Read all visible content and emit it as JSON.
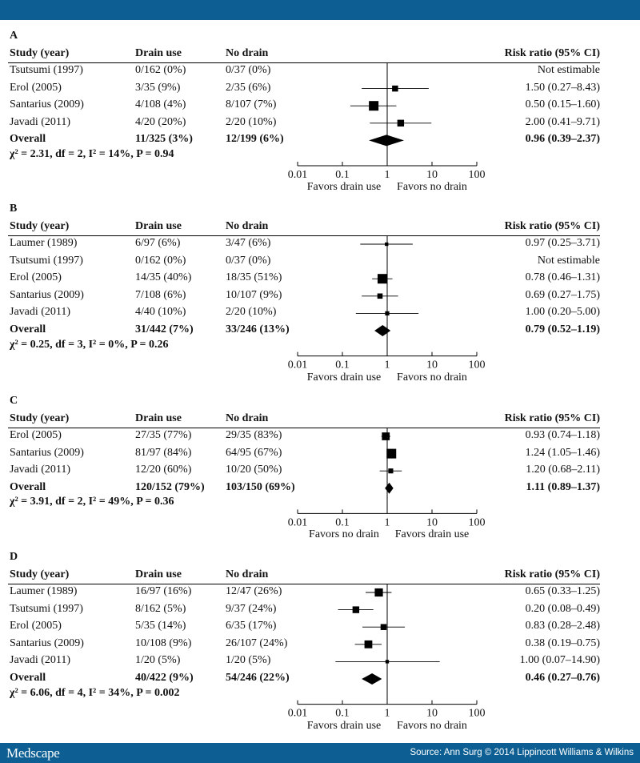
{
  "header_brand": "",
  "footer": {
    "brand": "Medscape",
    "source": "Source: Ann Surg © 2014 Lippincott Williams & Wilkins"
  },
  "columns": {
    "study": "Study (year)",
    "drain": "Drain use",
    "nodrain": "No drain",
    "rr": "Risk ratio (95% CI)"
  },
  "axis_ticks": [
    "0.01",
    "0.1",
    "1",
    "10",
    "100"
  ],
  "chart_data": [
    {
      "type": "forest",
      "panel": "A",
      "xscale": "log",
      "xlim": [
        0.01,
        100
      ],
      "favors_left": "Favors drain use",
      "favors_right": "Favors no drain",
      "heterogeneity": "χ² = 2.31, df = 2, I² = 14%, P = 0.94",
      "studies": [
        {
          "study": "Tsutsumi (1997)",
          "drain": "0/162 (0%)",
          "nodrain": "0/37 (0%)",
          "rr_text": "Not estimable",
          "rr": null,
          "lo": null,
          "hi": null,
          "weight": 0
        },
        {
          "study": "Erol (2005)",
          "drain": "3/35 (9%)",
          "nodrain": "2/35 (6%)",
          "rr_text": "1.50 (0.27–8.43)",
          "rr": 1.5,
          "lo": 0.27,
          "hi": 8.43,
          "weight": 0.5
        },
        {
          "study": "Santarius (2009)",
          "drain": "4/108 (4%)",
          "nodrain": "8/107 (7%)",
          "rr_text": "0.50 (0.15–1.60)",
          "rr": 0.5,
          "lo": 0.15,
          "hi": 1.6,
          "weight": 1
        },
        {
          "study": "Javadi (2011)",
          "drain": "4/20 (20%)",
          "nodrain": "2/20 (10%)",
          "rr_text": "2.00 (0.41–9.71)",
          "rr": 2.0,
          "lo": 0.41,
          "hi": 9.71,
          "weight": 0.6
        }
      ],
      "overall": {
        "study": "Overall",
        "drain": "11/325 (3%)",
        "nodrain": "12/199 (6%)",
        "rr_text": "0.96 (0.39–2.37)",
        "rr": 0.96,
        "lo": 0.39,
        "hi": 2.37
      }
    },
    {
      "type": "forest",
      "panel": "B",
      "xscale": "log",
      "xlim": [
        0.01,
        100
      ],
      "favors_left": "Favors drain use",
      "favors_right": "Favors no drain",
      "heterogeneity": "χ² = 0.25, df = 3, I² = 0%, P = 0.26",
      "studies": [
        {
          "study": "Laumer (1989)",
          "drain": "6/97 (6%)",
          "nodrain": "3/47 (6%)",
          "rr_text": "0.97 (0.25–3.71)",
          "rr": 0.97,
          "lo": 0.25,
          "hi": 3.71,
          "weight": 0.15
        },
        {
          "study": "Tsutsumi (1997)",
          "drain": "0/162 (0%)",
          "nodrain": "0/37 (0%)",
          "rr_text": "Not estimable",
          "rr": null,
          "lo": null,
          "hi": null,
          "weight": 0
        },
        {
          "study": "Erol (2005)",
          "drain": "14/35 (40%)",
          "nodrain": "18/35 (51%)",
          "rr_text": "0.78 (0.46–1.31)",
          "rr": 0.78,
          "lo": 0.46,
          "hi": 1.31,
          "weight": 1
        },
        {
          "study": "Santarius (2009)",
          "drain": "7/108 (6%)",
          "nodrain": "10/107 (9%)",
          "rr_text": "0.69 (0.27–1.75)",
          "rr": 0.69,
          "lo": 0.27,
          "hi": 1.75,
          "weight": 0.4
        },
        {
          "study": "Javadi (2011)",
          "drain": "4/40 (10%)",
          "nodrain": "2/20 (10%)",
          "rr_text": "1.00 (0.20–5.00)",
          "rr": 1.0,
          "lo": 0.2,
          "hi": 5.0,
          "weight": 0.25
        }
      ],
      "overall": {
        "study": "Overall",
        "drain": "31/442 (7%)",
        "nodrain": "33/246 (13%)",
        "rr_text": "0.79 (0.52–1.19)",
        "rr": 0.79,
        "lo": 0.52,
        "hi": 1.19
      }
    },
    {
      "type": "forest",
      "panel": "C",
      "xscale": "log",
      "xlim": [
        0.01,
        100
      ],
      "favors_left": "Favors no drain",
      "favors_right": "Favors drain use",
      "heterogeneity": "χ² = 3.91, df = 2, I² = 49%, P = 0.36",
      "studies": [
        {
          "study": "Erol (2005)",
          "drain": "27/35 (77%)",
          "nodrain": "29/35 (83%)",
          "rr_text": "0.93 (0.74–1.18)",
          "rr": 0.93,
          "lo": 0.74,
          "hi": 1.18,
          "weight": 0.75
        },
        {
          "study": "Santarius (2009)",
          "drain": "81/97 (84%)",
          "nodrain": "64/95 (67%)",
          "rr_text": "1.24 (1.05–1.46)",
          "rr": 1.24,
          "lo": 1.05,
          "hi": 1.46,
          "weight": 1
        },
        {
          "study": "Javadi (2011)",
          "drain": "12/20 (60%)",
          "nodrain": "10/20 (50%)",
          "rr_text": "1.20 (0.68–2.11)",
          "rr": 1.2,
          "lo": 0.68,
          "hi": 2.11,
          "weight": 0.35
        }
      ],
      "overall": {
        "study": "Overall",
        "drain": "120/152 (79%)",
        "nodrain": "103/150 (69%)",
        "rr_text": "1.11 (0.89–1.37)",
        "rr": 1.11,
        "lo": 0.89,
        "hi": 1.37
      }
    },
    {
      "type": "forest",
      "panel": "D",
      "xscale": "log",
      "xlim": [
        0.01,
        100
      ],
      "favors_left": "Favors drain use",
      "favors_right": "Favors no drain",
      "heterogeneity": "χ² = 6.06, df = 4, I² = 34%, P = 0.002",
      "studies": [
        {
          "study": "Laumer (1989)",
          "drain": "16/97 (16%)",
          "nodrain": "12/47 (26%)",
          "rr_text": "0.65 (0.33–1.25)",
          "rr": 0.65,
          "lo": 0.33,
          "hi": 1.25,
          "weight": 0.8
        },
        {
          "study": "Tsutsumi (1997)",
          "drain": "8/162 (5%)",
          "nodrain": "9/37 (24%)",
          "rr_text": "0.20 (0.08–0.49)",
          "rr": 0.2,
          "lo": 0.08,
          "hi": 0.49,
          "weight": 0.6
        },
        {
          "study": "Erol (2005)",
          "drain": "5/35 (14%)",
          "nodrain": "6/35 (17%)",
          "rr_text": "0.83 (0.28–2.48)",
          "rr": 0.83,
          "lo": 0.28,
          "hi": 2.48,
          "weight": 0.5
        },
        {
          "study": "Santarius (2009)",
          "drain": "10/108 (9%)",
          "nodrain": "26/107 (24%)",
          "rr_text": "0.38 (0.19–0.75)",
          "rr": 0.38,
          "lo": 0.19,
          "hi": 0.75,
          "weight": 0.75
        },
        {
          "study": "Javadi (2011)",
          "drain": "1/20 (5%)",
          "nodrain": "1/20 (5%)",
          "rr_text": "1.00 (0.07–14.90)",
          "rr": 1.0,
          "lo": 0.07,
          "hi": 14.9,
          "weight": 0.15
        }
      ],
      "overall": {
        "study": "Overall",
        "drain": "40/422 (9%)",
        "nodrain": "54/246 (22%)",
        "rr_text": "0.46 (0.27–0.76)",
        "rr": 0.46,
        "lo": 0.27,
        "hi": 0.76
      }
    }
  ]
}
